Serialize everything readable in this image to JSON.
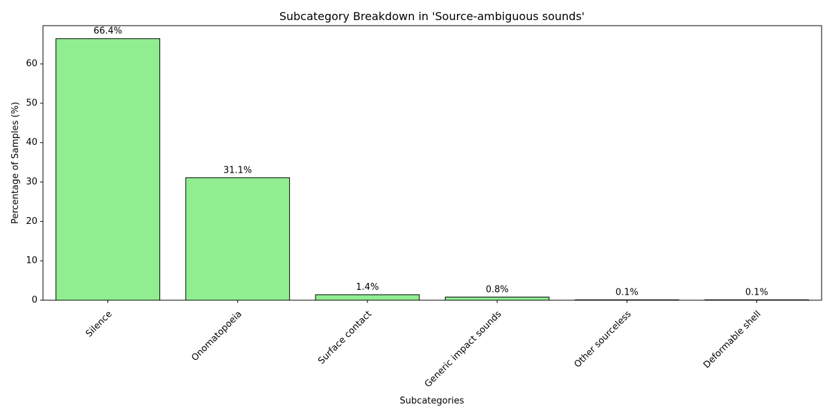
{
  "chart_data": {
    "type": "bar",
    "title": "Subcategory Breakdown in 'Source-ambiguous sounds'",
    "xlabel": "Subcategories",
    "ylabel": "Percentage of Samples (%)",
    "categories": [
      "Silence",
      "Onomatopoeia",
      "Surface contact",
      "Generic impact sounds",
      "Other sourceless",
      "Deformable shell"
    ],
    "values": [
      66.4,
      31.1,
      1.4,
      0.8,
      0.1,
      0.1
    ],
    "data_labels": [
      "66.4%",
      "31.1%",
      "1.4%",
      "0.8%",
      "0.1%",
      "0.1%"
    ],
    "yticks": [
      0,
      10,
      20,
      30,
      40,
      50,
      60
    ],
    "ylim": [
      0,
      69.7
    ],
    "grid": false,
    "bar_color": "#90ee90",
    "edge_color": "#000000"
  }
}
